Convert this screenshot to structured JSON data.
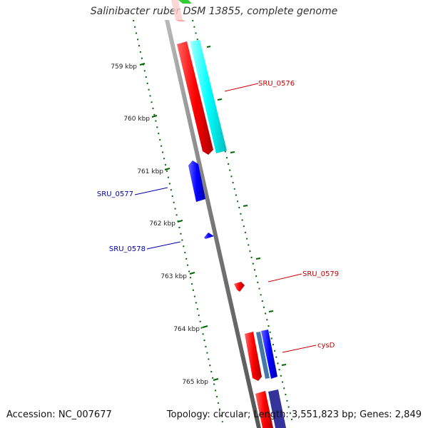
{
  "title": "Salinibacter ruber DSM 13855, complete genome",
  "footer": {
    "accession": "Accession: NC_007677",
    "summary": "Topology: circular; Length: 3,551,823 bp; Genes: 2,849"
  },
  "tick_labels": [
    "759 kbp",
    "760 kbp",
    "761 kbp",
    "762 kbp",
    "763 kbp",
    "764 kbp",
    "765 kbp"
  ],
  "gene_labels": [
    {
      "id": "SRU_0576",
      "text": "SRU_0576",
      "color": "#cc0000"
    },
    {
      "id": "SRU_0577",
      "text": "SRU_0577",
      "color": "#0000aa"
    },
    {
      "id": "SRU_0578",
      "text": "SRU_0578",
      "color": "#0000aa"
    },
    {
      "id": "SRU_0579",
      "text": "SRU_0579",
      "color": "#cc0000"
    },
    {
      "id": "cysD",
      "text": "cysD",
      "color": "#cc0000"
    }
  ],
  "colors": {
    "forward": "#ff0000",
    "reverse": "#0000ff",
    "cyan": "#00ffff",
    "green": "#33cc33",
    "navy": "#333399",
    "steel": "#4477aa",
    "backbone": "#888888",
    "tick": "#006600"
  }
}
